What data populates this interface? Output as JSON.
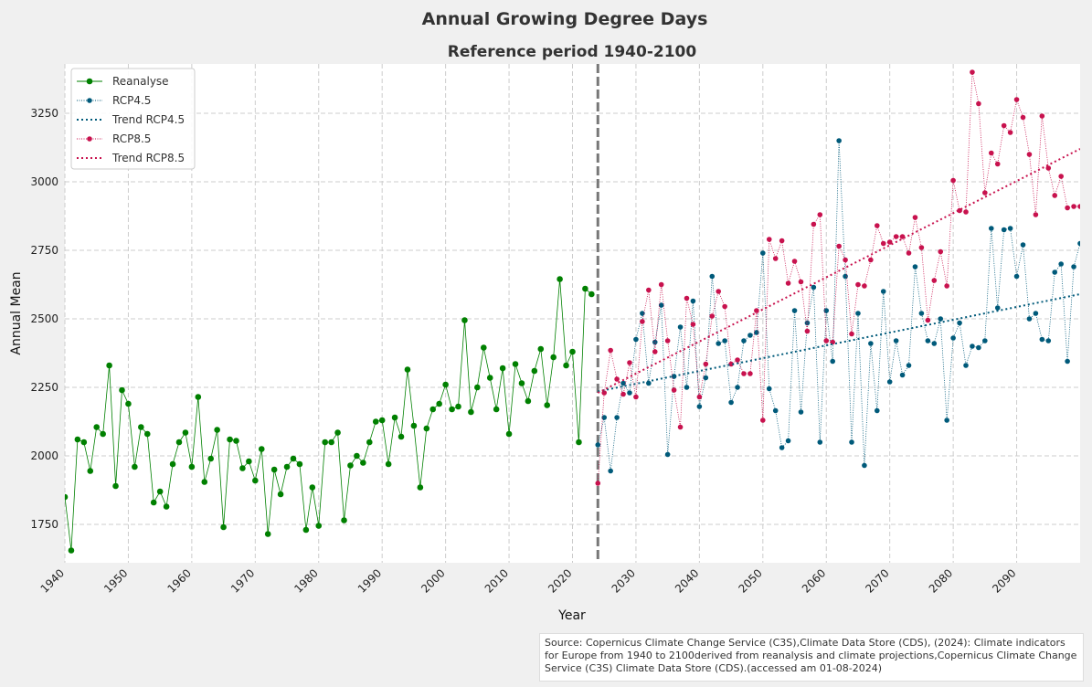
{
  "chart_data": {
    "type": "line",
    "title": "Annual Growing Degree Days",
    "subtitle": "Reference period 1940-2100",
    "xlabel": "Year",
    "ylabel": "Annual Mean",
    "xlim": [
      1940,
      2100
    ],
    "ylim": [
      1610,
      3430
    ],
    "xticks": [
      "1940",
      "1950",
      "1960",
      "1970",
      "1980",
      "1990",
      "2000",
      "2010",
      "2020",
      "2030",
      "2040",
      "2050",
      "2060",
      "2070",
      "2080",
      "2090"
    ],
    "yticks": [
      "1750",
      "2000",
      "2250",
      "2500",
      "2750",
      "3000",
      "3250"
    ],
    "grid": true,
    "legend_position": "top-left",
    "vline_x": 2024,
    "series": [
      {
        "name": "Reanalyse",
        "color": "#008000",
        "x": [
          1940,
          1941,
          1942,
          1943,
          1944,
          1945,
          1946,
          1947,
          1948,
          1949,
          1950,
          1951,
          1952,
          1953,
          1954,
          1955,
          1956,
          1957,
          1958,
          1959,
          1960,
          1961,
          1962,
          1963,
          1964,
          1965,
          1966,
          1967,
          1968,
          1969,
          1970,
          1971,
          1972,
          1973,
          1974,
          1975,
          1976,
          1977,
          1978,
          1979,
          1980,
          1981,
          1982,
          1983,
          1984,
          1985,
          1986,
          1987,
          1988,
          1989,
          1990,
          1991,
          1992,
          1993,
          1994,
          1995,
          1996,
          1997,
          1998,
          1999,
          2000,
          2001,
          2002,
          2003,
          2004,
          2005,
          2006,
          2007,
          2008,
          2009,
          2010,
          2011,
          2012,
          2013,
          2014,
          2015,
          2016,
          2017,
          2018,
          2019,
          2020,
          2021,
          2022,
          2023
        ],
        "values": [
          1850,
          1655,
          2060,
          2050,
          1945,
          2105,
          2080,
          2330,
          1890,
          2240,
          2190,
          1960,
          2105,
          2080,
          1830,
          1870,
          1815,
          1970,
          2050,
          2085,
          1960,
          2215,
          1905,
          1990,
          2095,
          1740,
          2060,
          2055,
          1955,
          1980,
          1910,
          2025,
          1715,
          1950,
          1860,
          1960,
          1990,
          1970,
          1730,
          1885,
          1745,
          2050,
          2050,
          2085,
          1765,
          1965,
          2000,
          1975,
          2050,
          2125,
          2130,
          1970,
          2140,
          2070,
          2315,
          2110,
          1885,
          2100,
          2170,
          2190,
          2260,
          2170,
          2180,
          2495,
          2160,
          2250,
          2395,
          2285,
          2170,
          2320,
          2080,
          2335,
          2265,
          2200,
          2310,
          2390,
          2185,
          2360,
          2645,
          2330,
          2380,
          2050,
          2610,
          2590
        ]
      },
      {
        "name": "RCP4.5",
        "color": "#005a7a",
        "x": [
          2024,
          2025,
          2026,
          2027,
          2028,
          2029,
          2030,
          2031,
          2032,
          2033,
          2034,
          2035,
          2036,
          2037,
          2038,
          2039,
          2040,
          2041,
          2042,
          2043,
          2044,
          2045,
          2046,
          2047,
          2048,
          2049,
          2050,
          2051,
          2052,
          2053,
          2054,
          2055,
          2056,
          2057,
          2058,
          2059,
          2060,
          2061,
          2062,
          2063,
          2064,
          2065,
          2066,
          2067,
          2068,
          2069,
          2070,
          2071,
          2072,
          2073,
          2074,
          2075,
          2076,
          2077,
          2078,
          2079,
          2080,
          2081,
          2082,
          2083,
          2084,
          2085,
          2086,
          2087,
          2088,
          2089,
          2090,
          2091,
          2092,
          2093,
          2094,
          2095,
          2096,
          2097,
          2098,
          2099,
          2100
        ],
        "values": [
          2040,
          2140,
          1945,
          2140,
          2265,
          2230,
          2425,
          2520,
          2265,
          2415,
          2550,
          2005,
          2290,
          2470,
          2250,
          2565,
          2180,
          2285,
          2655,
          2410,
          2420,
          2195,
          2250,
          2420,
          2440,
          2450,
          2740,
          2245,
          2165,
          2030,
          2055,
          2530,
          2160,
          2485,
          2615,
          2050,
          2530,
          2345,
          3150,
          2655,
          2050,
          2520,
          1965,
          2410,
          2165,
          2600,
          2270,
          2420,
          2295,
          2330,
          2690,
          2520,
          2420,
          2410,
          2500,
          2130,
          2430,
          2485,
          2330,
          2400,
          2395,
          2420,
          2830,
          2540,
          2825,
          2830,
          2655,
          2770,
          2500,
          2520,
          2425,
          2420,
          2670,
          2700,
          2345,
          2690,
          2775
        ]
      },
      {
        "name": "RCP8.5",
        "color": "#c8124e",
        "x": [
          2024,
          2025,
          2026,
          2027,
          2028,
          2029,
          2030,
          2031,
          2032,
          2033,
          2034,
          2035,
          2036,
          2037,
          2038,
          2039,
          2040,
          2041,
          2042,
          2043,
          2044,
          2045,
          2046,
          2047,
          2048,
          2049,
          2050,
          2051,
          2052,
          2053,
          2054,
          2055,
          2056,
          2057,
          2058,
          2059,
          2060,
          2061,
          2062,
          2063,
          2064,
          2065,
          2066,
          2067,
          2068,
          2069,
          2070,
          2071,
          2072,
          2073,
          2074,
          2075,
          2076,
          2077,
          2078,
          2079,
          2080,
          2081,
          2082,
          2083,
          2084,
          2085,
          2086,
          2087,
          2088,
          2089,
          2090,
          2091,
          2092,
          2093,
          2094,
          2095,
          2096,
          2097,
          2098,
          2099,
          2100
        ],
        "values": [
          1900,
          2230,
          2385,
          2280,
          2225,
          2340,
          2215,
          2490,
          2605,
          2380,
          2625,
          2420,
          2240,
          2105,
          2575,
          2480,
          2215,
          2335,
          2510,
          2600,
          2545,
          2335,
          2350,
          2300,
          2300,
          2530,
          2130,
          2790,
          2720,
          2785,
          2630,
          2710,
          2635,
          2455,
          2845,
          2880,
          2420,
          2415,
          2765,
          2715,
          2445,
          2625,
          2620,
          2715,
          2840,
          2775,
          2780,
          2800,
          2800,
          2740,
          2870,
          2760,
          2495,
          2640,
          2745,
          2620,
          3005,
          2895,
          2890,
          3400,
          3285,
          2960,
          3105,
          3065,
          3205,
          3180,
          3300,
          3235,
          3100,
          2880,
          3240,
          3050,
          2950,
          3020,
          2905,
          2910,
          2910
        ]
      },
      {
        "name": "Trend RCP4.5",
        "color": "#005a7a",
        "style": "trend",
        "x": [
          2024,
          2100
        ],
        "values": [
          2235,
          2590
        ]
      },
      {
        "name": "Trend RCP8.5",
        "color": "#c8124e",
        "style": "trend",
        "x": [
          2024,
          2100
        ],
        "values": [
          2230,
          3120
        ]
      }
    ]
  },
  "source": {
    "text": "Source: Copernicus Climate Change Service (C3S),Climate Data Store (CDS), (2024): Climate indicators for Europe from 1940 to 2100derived from reanalysis and climate projections,Copernicus Climate Change Service (C3S) Climate Data Store (CDS).(accessed am 01-08-2024)"
  }
}
